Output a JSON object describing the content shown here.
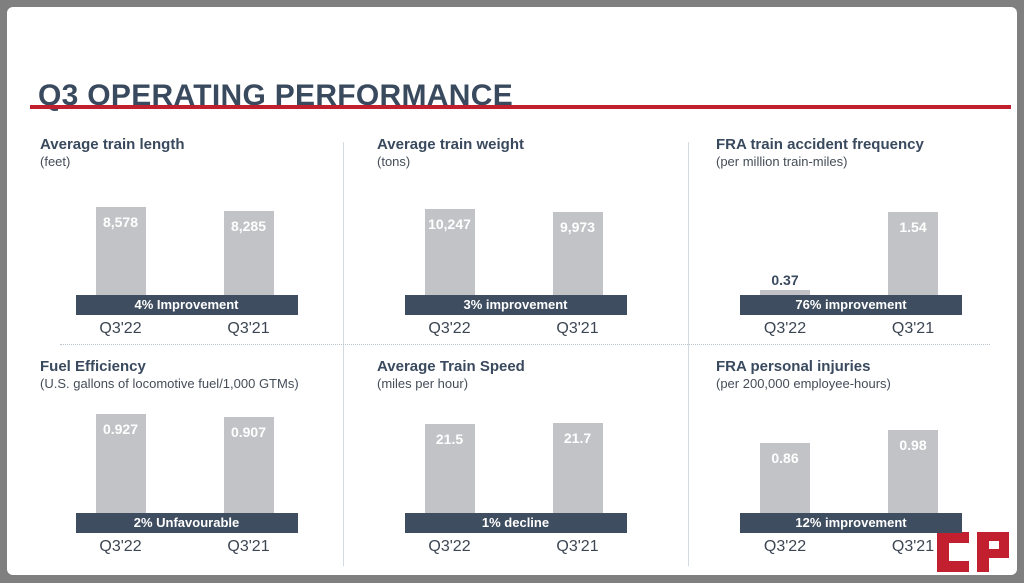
{
  "slide": {
    "title": "Q3 OPERATING PERFORMANCE",
    "logo_text": "CP"
  },
  "colors": {
    "accent_red": "#C0202E",
    "logo_red": "#C2202F",
    "bar_gray": "#C2C3C6",
    "banner_navy": "#3E4D5F",
    "title_navy": "#3A4A5E",
    "subtitle_gray": "#454D58",
    "xlabel_gray": "#3C4653"
  },
  "chart_data": [
    {
      "type": "bar",
      "title": "Average train length",
      "subtitle": "(feet)",
      "categories": [
        "Q3'22",
        "Q3'21"
      ],
      "values": [
        8578,
        8285
      ],
      "value_labels": [
        "8,578",
        "8,285"
      ],
      "banner": "4% Improvement",
      "ylim": [
        0,
        8578
      ],
      "grid": false,
      "legend_position": "none"
    },
    {
      "type": "bar",
      "title": "Average train weight",
      "subtitle": "(tons)",
      "categories": [
        "Q3'22",
        "Q3'21"
      ],
      "values": [
        10247,
        9973
      ],
      "value_labels": [
        "10,247",
        "9,973"
      ],
      "banner": "3% improvement",
      "ylim": [
        0,
        10247
      ],
      "grid": false,
      "legend_position": "none"
    },
    {
      "type": "bar",
      "title": "FRA train accident frequency",
      "subtitle": "(per million train-miles)",
      "categories": [
        "Q3'22",
        "Q3'21"
      ],
      "values": [
        0.37,
        1.54
      ],
      "value_labels": [
        "0.37",
        "1.54"
      ],
      "banner": "76% improvement",
      "ylim": [
        0,
        1.54
      ],
      "grid": false,
      "legend_position": "none"
    },
    {
      "type": "bar",
      "title": "Fuel Efficiency",
      "subtitle": "(U.S. gallons of locomotive fuel/1,000 GTMs)",
      "categories": [
        "Q3'22",
        "Q3'21"
      ],
      "values": [
        0.927,
        0.907
      ],
      "value_labels": [
        "0.927",
        "0.907"
      ],
      "banner": "2% Unfavourable",
      "ylim": [
        0,
        0.927
      ],
      "grid": false,
      "legend_position": "none"
    },
    {
      "type": "bar",
      "title": "Average Train Speed",
      "subtitle": "(miles per hour)",
      "categories": [
        "Q3'22",
        "Q3'21"
      ],
      "values": [
        21.5,
        21.7
      ],
      "value_labels": [
        "21.5",
        "21.7"
      ],
      "banner": "1% decline",
      "ylim": [
        0,
        21.7
      ],
      "grid": false,
      "legend_position": "none"
    },
    {
      "type": "bar",
      "title": "FRA personal injuries",
      "subtitle": "(per 200,000 employee-hours)",
      "categories": [
        "Q3'22",
        "Q3'21"
      ],
      "values": [
        0.86,
        0.98
      ],
      "value_labels": [
        "0.86",
        "0.98"
      ],
      "banner": "12% improvement",
      "ylim": [
        0,
        0.98
      ],
      "grid": false,
      "legend_position": "none"
    }
  ]
}
